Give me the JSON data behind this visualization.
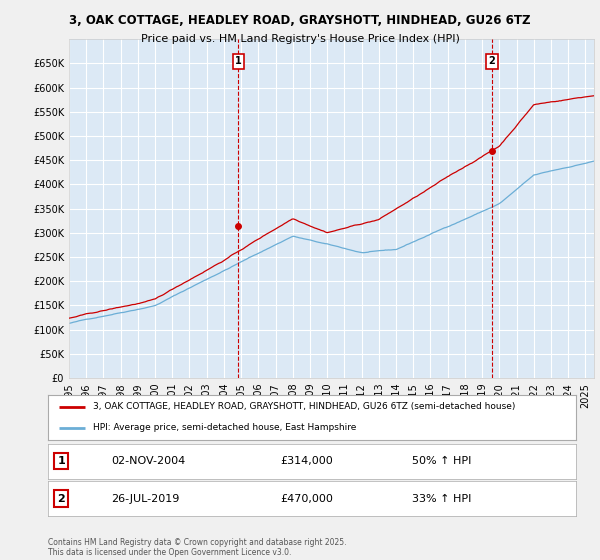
{
  "title_line1": "3, OAK COTTAGE, HEADLEY ROAD, GRAYSHOTT, HINDHEAD, GU26 6TZ",
  "title_line2": "Price paid vs. HM Land Registry's House Price Index (HPI)",
  "xlim_start": 1995.0,
  "xlim_end": 2025.5,
  "ylim": [
    0,
    700000
  ],
  "yticks": [
    0,
    50000,
    100000,
    150000,
    200000,
    250000,
    300000,
    350000,
    400000,
    450000,
    500000,
    550000,
    600000,
    650000
  ],
  "ytick_labels": [
    "£0",
    "£50K",
    "£100K",
    "£150K",
    "£200K",
    "£250K",
    "£300K",
    "£350K",
    "£400K",
    "£450K",
    "£500K",
    "£550K",
    "£600K",
    "£650K"
  ],
  "xticks": [
    1995,
    1996,
    1997,
    1998,
    1999,
    2000,
    2001,
    2002,
    2003,
    2004,
    2005,
    2006,
    2007,
    2008,
    2009,
    2010,
    2011,
    2012,
    2013,
    2014,
    2015,
    2016,
    2017,
    2018,
    2019,
    2020,
    2021,
    2022,
    2023,
    2024,
    2025
  ],
  "plot_bg_color": "#dce9f5",
  "grid_color": "#ffffff",
  "red_line_color": "#cc0000",
  "blue_line_color": "#6baed6",
  "sale1_x": 2004.84,
  "sale1_y": 314000,
  "sale1_label": "1",
  "sale2_x": 2019.57,
  "sale2_y": 470000,
  "sale2_label": "2",
  "legend_red": "3, OAK COTTAGE, HEADLEY ROAD, GRAYSHOTT, HINDHEAD, GU26 6TZ (semi-detached house)",
  "legend_blue": "HPI: Average price, semi-detached house, East Hampshire",
  "annotation1_date": "02-NOV-2004",
  "annotation1_price": "£314,000",
  "annotation1_hpi": "50% ↑ HPI",
  "annotation2_date": "26-JUL-2019",
  "annotation2_price": "£470,000",
  "annotation2_hpi": "33% ↑ HPI",
  "footer": "Contains HM Land Registry data © Crown copyright and database right 2025.\nThis data is licensed under the Open Government Licence v3.0."
}
